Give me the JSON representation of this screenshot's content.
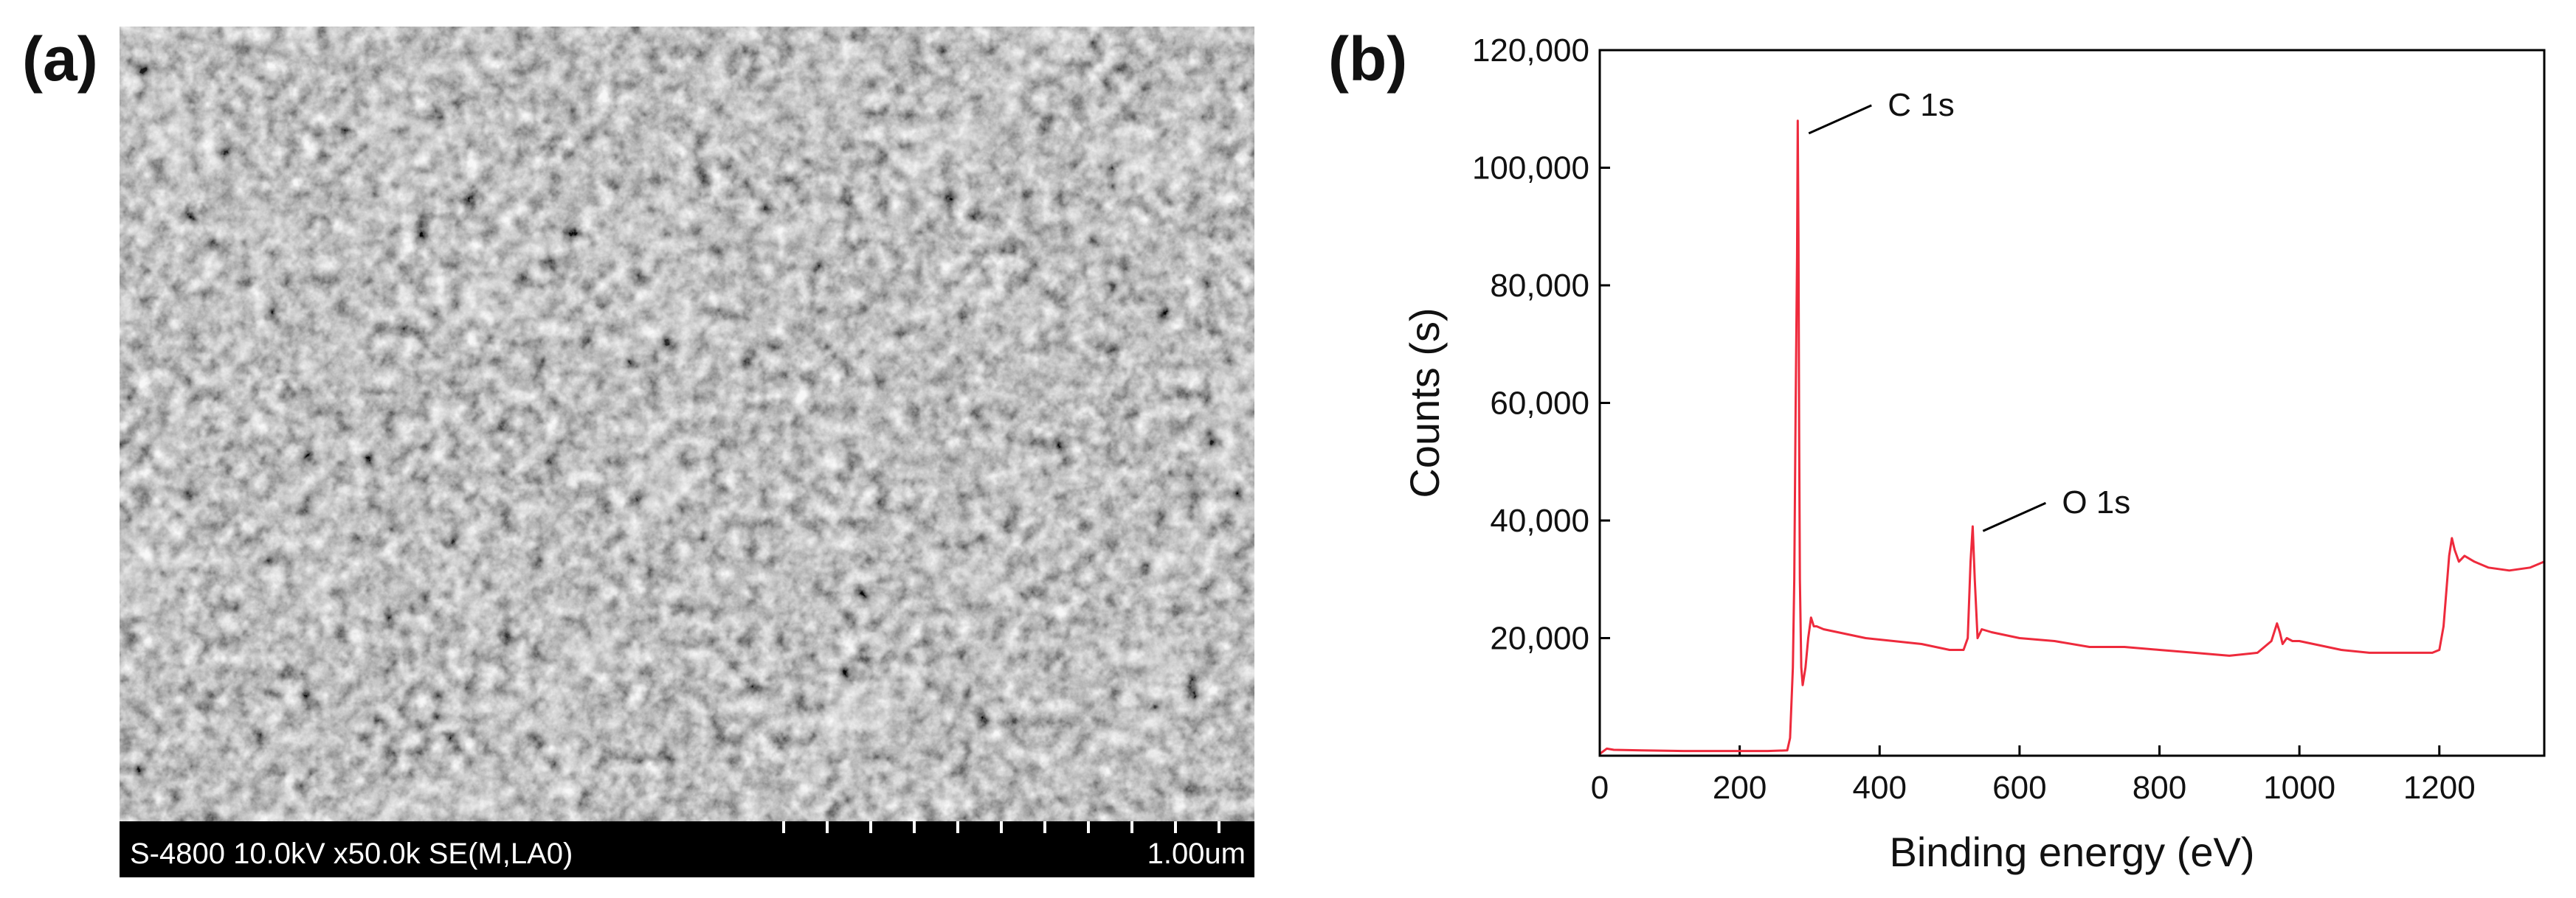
{
  "panel_a": {
    "label": "(a)",
    "info_bar_text": "S-4800 10.0kV x50.0k SE(M,LA0)",
    "scale_bar_text": "1.00um"
  },
  "panel_b": {
    "label": "(b)"
  },
  "chart_data": {
    "type": "line",
    "title": "",
    "xlabel": "Binding energy (eV)",
    "ylabel": "Counts (s)",
    "xlim": [
      0,
      1350
    ],
    "ylim": [
      0,
      120000
    ],
    "x_ticks": [
      0,
      200,
      400,
      600,
      800,
      1000,
      1200
    ],
    "x_tick_labels": [
      "0",
      "200",
      "400",
      "600",
      "800",
      "1000",
      "1200"
    ],
    "y_ticks": [
      20000,
      40000,
      60000,
      80000,
      100000,
      120000
    ],
    "y_tick_labels": [
      "20,000",
      "40,000",
      "60,000",
      "80,000",
      "100,000",
      "120,000"
    ],
    "grid": false,
    "line_color": "#ee2a3c",
    "series": [
      {
        "x": [
          0,
          10,
          20,
          60,
          120,
          180,
          240,
          268,
          272,
          276,
          278,
          280,
          282,
          283,
          284,
          285,
          286,
          288,
          290,
          294,
          298,
          302,
          306,
          310,
          320,
          340,
          380,
          420,
          460,
          500,
          520,
          526,
          530,
          533,
          536,
          540,
          546,
          560,
          600,
          650,
          700,
          750,
          800,
          850,
          900,
          940,
          960,
          968,
          972,
          976,
          982,
          990,
          1000,
          1020,
          1060,
          1100,
          1150,
          1190,
          1200,
          1206,
          1210,
          1214,
          1218,
          1222,
          1228,
          1236,
          1250,
          1270,
          1300,
          1330,
          1350
        ],
        "y": [
          300,
          1200,
          1000,
          900,
          800,
          800,
          800,
          900,
          3000,
          15000,
          30000,
          60000,
          85000,
          108000,
          88000,
          55000,
          30000,
          15000,
          12000,
          15000,
          20000,
          23500,
          22000,
          22000,
          21500,
          21000,
          20000,
          19500,
          19000,
          18000,
          18000,
          20000,
          33000,
          39000,
          30000,
          20000,
          21500,
          21000,
          20000,
          19500,
          18500,
          18500,
          18000,
          17500,
          17000,
          17500,
          19500,
          22500,
          21000,
          19000,
          20000,
          19500,
          19500,
          19000,
          18000,
          17500,
          17500,
          17500,
          18000,
          22000,
          28000,
          34000,
          37000,
          35000,
          33000,
          34000,
          33000,
          32000,
          31500,
          32000,
          33000
        ]
      }
    ],
    "annotations": [
      {
        "text": "C 1s",
        "x": 284,
        "y": 108000
      },
      {
        "text": "O 1s",
        "x": 533,
        "y": 39000
      }
    ]
  }
}
